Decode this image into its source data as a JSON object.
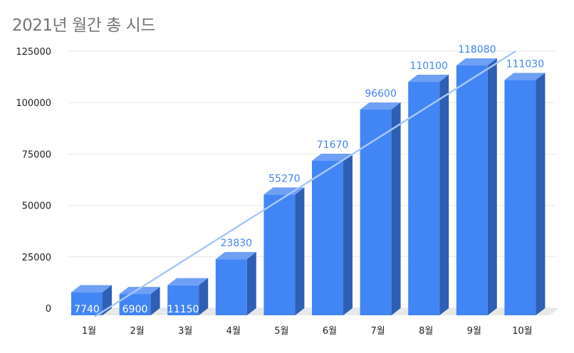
{
  "colors": {
    "bar_front": "#4285f4",
    "bar_top": "#6fa0f6",
    "bar_side": "#2f5fb3",
    "trendline": "#a8c7fa",
    "label_outside": "#4285f4",
    "label_inside": "#ffffff",
    "grid": "#e6e6e6",
    "floor": "#e8e8e8"
  },
  "chart_data": {
    "type": "bar",
    "title": "2021년 월간 총 시드",
    "categories": [
      "1월",
      "2월",
      "3월",
      "4월",
      "5월",
      "6월",
      "7월",
      "8월",
      "9월",
      "10월"
    ],
    "values": [
      7740,
      6900,
      11150,
      23830,
      55270,
      71670,
      96600,
      110100,
      118080,
      111030
    ],
    "data_labels": [
      "7740",
      "6900",
      "11150",
      "23830",
      "55270",
      "71670",
      "96600",
      "110100",
      "118080",
      "111030"
    ],
    "ylim": [
      0,
      125000
    ],
    "yticks": [
      0,
      25000,
      50000,
      75000,
      100000,
      125000
    ],
    "ytick_labels": [
      "0",
      "25000",
      "50000",
      "75000",
      "100000",
      "125000"
    ],
    "xlabel": "",
    "ylabel": "",
    "grid": true,
    "trendline": true,
    "style": "3d-column"
  }
}
